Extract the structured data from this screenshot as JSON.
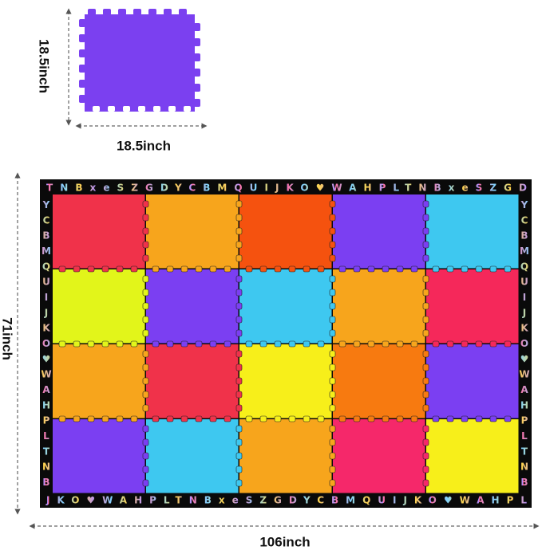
{
  "single_tile": {
    "width_label": "18.5inch",
    "height_label": "18.5inch"
  },
  "mat": {
    "width_label": "106inch",
    "height_label": "71inch",
    "border_top": "TNBxeSZGDYCBMQUIJKO♥WAHPLTNBxeSZGD",
    "border_bottom": "JKO♥WAHPLTNBxeSZGDYCBMQUIJKO♥WAHPL",
    "border_left": "YCBMQUIJKO♥WAHPLTNB",
    "border_right": "YCBMQUIJKO♥WAHPLTNB"
  }
}
